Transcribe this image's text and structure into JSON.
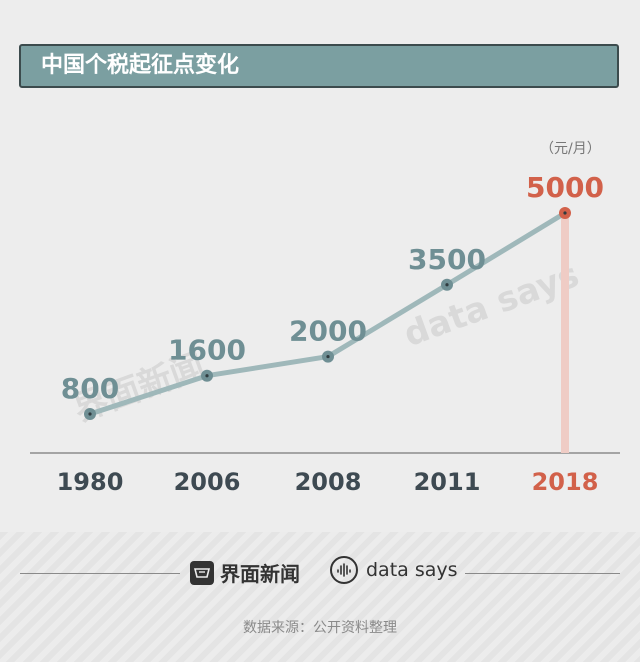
{
  "title": "中国个税起征点变化",
  "unit": "（元/月）",
  "watermarks": {
    "jm": "界面新闻",
    "ds": "data says"
  },
  "footer": {
    "brand_jm": "界面新闻",
    "brand_ds": "data says",
    "source": "数据来源：公开资料整理"
  },
  "colors": {
    "line": "#9fb8ba",
    "label": "#6f8f94",
    "highlight": "#d2614a",
    "highlight_bar": "#efccc5",
    "axis_text": "#3e4a52",
    "title_bg": "#7b9fa1"
  },
  "chart_data": {
    "type": "line",
    "categories": [
      "1980",
      "2006",
      "2008",
      "2011",
      "2018"
    ],
    "values": [
      800,
      1600,
      2000,
      3500,
      5000
    ],
    "value_labels": [
      "800",
      "1600",
      "2000",
      "3500",
      "5000"
    ],
    "highlight_index": 4,
    "title": "中国个税起征点变化",
    "ylabel": "（元/月）",
    "ylim": [
      0,
      5000
    ],
    "grid": false,
    "legend": "none"
  }
}
